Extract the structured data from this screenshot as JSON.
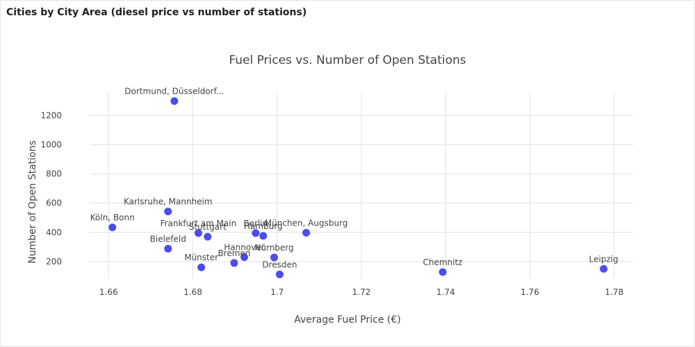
{
  "panel": {
    "title": "Cities by City Area (diesel price vs number of stations)"
  },
  "colors": {
    "marker": "#4c4cf0",
    "grid": "#e1e1e1",
    "text": "#444444"
  },
  "chart_data": {
    "type": "scatter",
    "title": "Fuel Prices vs. Number of Open Stations",
    "xlabel": "Average Fuel Price (€)",
    "ylabel": "Number of Open Stations",
    "xlim": [
      1.6555,
      1.7845
    ],
    "ylim": [
      85,
      1360
    ],
    "xticks": [
      1.66,
      1.68,
      1.7,
      1.72,
      1.74,
      1.76,
      1.78
    ],
    "xtick_labels": [
      "1.66",
      "1.68",
      "1.7",
      "1.72",
      "1.74",
      "1.76",
      "1.78"
    ],
    "yticks": [
      200,
      400,
      600,
      800,
      1000,
      1200
    ],
    "ytick_labels": [
      "200",
      "400",
      "600",
      "800",
      "1000",
      "1200"
    ],
    "grid": true,
    "legend": "none",
    "points": [
      {
        "label": "Dortmund, Düsseldorf...",
        "x": 1.6756,
        "y": 1300,
        "label_pos": "top"
      },
      {
        "label": "Karlsruhe, Mannheim",
        "x": 1.6741,
        "y": 543,
        "label_pos": "top"
      },
      {
        "label": "Köln, Bonn",
        "x": 1.6609,
        "y": 434,
        "label_pos": "top"
      },
      {
        "label": "Frankfurt am Main",
        "x": 1.6813,
        "y": 395,
        "label_pos": "top"
      },
      {
        "label": "Stuttgart",
        "x": 1.6835,
        "y": 370,
        "label_pos": "top"
      },
      {
        "label": "Bielefeld",
        "x": 1.6741,
        "y": 288,
        "label_pos": "top"
      },
      {
        "label": "Berlin",
        "x": 1.6949,
        "y": 395,
        "label_pos": "top"
      },
      {
        "label": "Hamburg",
        "x": 1.6967,
        "y": 376,
        "label_pos": "top"
      },
      {
        "label": "München, Augsburg",
        "x": 1.7069,
        "y": 397,
        "label_pos": "top"
      },
      {
        "label": "Hannover",
        "x": 1.6922,
        "y": 230,
        "label_pos": "top"
      },
      {
        "label": "Nürnberg",
        "x": 1.6993,
        "y": 228,
        "label_pos": "top"
      },
      {
        "label": "Bremen",
        "x": 1.6898,
        "y": 190,
        "label_pos": "top"
      },
      {
        "label": "Münster",
        "x": 1.682,
        "y": 160,
        "label_pos": "top"
      },
      {
        "label": "Dresden",
        "x": 1.7006,
        "y": 112,
        "label_pos": "top"
      },
      {
        "label": "Chemnitz",
        "x": 1.7393,
        "y": 128,
        "label_pos": "top"
      },
      {
        "label": "Leipzig",
        "x": 1.7775,
        "y": 150,
        "label_pos": "top"
      }
    ]
  }
}
